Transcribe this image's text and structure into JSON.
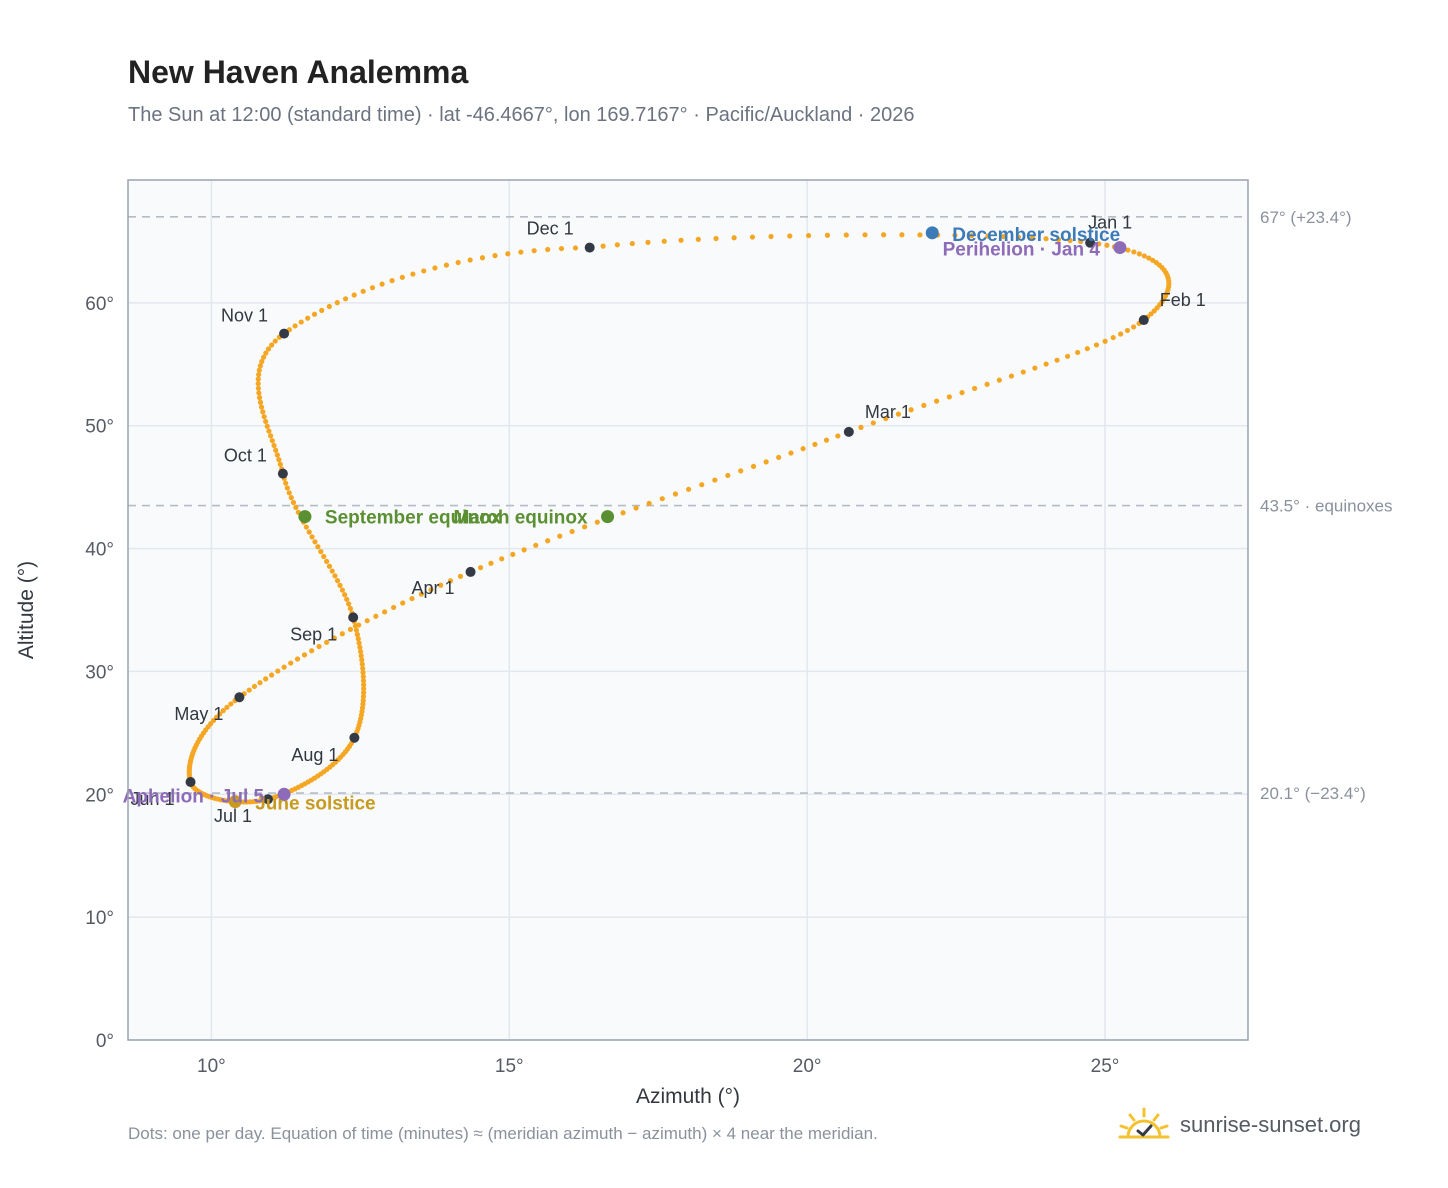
{
  "header": {
    "title": "New Haven Analemma",
    "subtitle": "The Sun at 12:00 (standard time) · lat -46.4667°, lon 169.7167° · Pacific/Auckland · 2026"
  },
  "footer": {
    "note": "Dots: one per day. Equation of time (minutes) ≈ (meridian azimuth − azimuth) × 4 near the meridian.",
    "brand": "sunrise-sunset.org",
    "brand_icon": "sun-horizon-icon"
  },
  "colors": {
    "curve": "#f5a623",
    "month_marker": "#333a45",
    "december_solstice": "#3d7ab8",
    "june_solstice": "#c89a1e",
    "equinox": "#5a8f32",
    "perihelion_aphelion": "#8e6bb8",
    "plot_bg": "#f8fafc",
    "grid": "#e3e8ee",
    "frame": "#9aa3ae",
    "ref_line": "#b4bcc6"
  },
  "chart_data": {
    "type": "scatter",
    "title": "New Haven Analemma",
    "xlabel": "Azimuth (°)",
    "ylabel": "Altitude (°)",
    "xlim": [
      8.6,
      27.4
    ],
    "ylim": [
      0,
      70
    ],
    "x_ticks": [
      10,
      15,
      20,
      25
    ],
    "x_tick_labels": [
      "10°",
      "15°",
      "20°",
      "25°"
    ],
    "y_ticks": [
      0,
      10,
      20,
      30,
      40,
      50,
      60
    ],
    "y_tick_labels": [
      "0°",
      "10°",
      "20°",
      "30°",
      "40°",
      "50°",
      "60°"
    ],
    "grid": true,
    "reference_lines": [
      {
        "y": 67.0,
        "label": "67° (+23.4°)"
      },
      {
        "y": 43.5,
        "label": "43.5° · equinoxes"
      },
      {
        "y": 20.1,
        "label": "20.1° (−23.4°)"
      }
    ],
    "analemma_path": [
      {
        "day": 0,
        "az": 24.75,
        "alt": 64.9
      },
      {
        "day": 31,
        "az": 25.65,
        "alt": 58.6
      },
      {
        "day": 59,
        "az": 20.7,
        "alt": 49.5
      },
      {
        "day": 90,
        "az": 14.35,
        "alt": 38.1
      },
      {
        "day": 120,
        "az": 10.47,
        "alt": 27.9
      },
      {
        "day": 151,
        "az": 9.65,
        "alt": 21.0
      },
      {
        "day": 181,
        "az": 10.95,
        "alt": 19.6
      },
      {
        "day": 212,
        "az": 12.4,
        "alt": 24.6
      },
      {
        "day": 243,
        "az": 12.38,
        "alt": 34.4
      },
      {
        "day": 273,
        "az": 11.2,
        "alt": 46.1
      },
      {
        "day": 304,
        "az": 11.22,
        "alt": 57.5
      },
      {
        "day": 334,
        "az": 16.35,
        "alt": 64.5
      },
      {
        "day": 365,
        "az": 24.75,
        "alt": 64.9
      }
    ],
    "month_markers": [
      {
        "label": "Jan 1",
        "az": 24.75,
        "alt": 64.9
      },
      {
        "label": "Feb 1",
        "az": 25.65,
        "alt": 58.6
      },
      {
        "label": "Mar 1",
        "az": 20.7,
        "alt": 49.5
      },
      {
        "label": "Apr 1",
        "az": 14.35,
        "alt": 38.1
      },
      {
        "label": "May 1",
        "az": 10.47,
        "alt": 27.9
      },
      {
        "label": "Jun 1",
        "az": 9.65,
        "alt": 21.0
      },
      {
        "label": "Jul 1",
        "az": 10.95,
        "alt": 19.6
      },
      {
        "label": "Aug 1",
        "az": 12.4,
        "alt": 24.6
      },
      {
        "label": "Sep 1",
        "az": 12.38,
        "alt": 34.4
      },
      {
        "label": "Oct 1",
        "az": 11.2,
        "alt": 46.1
      },
      {
        "label": "Nov 1",
        "az": 11.22,
        "alt": 57.5
      },
      {
        "label": "Dec 1",
        "az": 16.35,
        "alt": 64.5
      }
    ],
    "events": [
      {
        "label": "December solstice",
        "az": 22.1,
        "alt": 65.7,
        "color_key": "december_solstice"
      },
      {
        "label": "Perihelion · Jan 4",
        "az": 25.25,
        "alt": 64.5,
        "color_key": "perihelion_aphelion"
      },
      {
        "label": "March equinox",
        "az": 16.65,
        "alt": 42.6,
        "color_key": "equinox"
      },
      {
        "label": "September equinox",
        "az": 11.57,
        "alt": 42.6,
        "color_key": "equinox"
      },
      {
        "label": "June solstice",
        "az": 10.4,
        "alt": 19.4,
        "color_key": "june_solstice"
      },
      {
        "label": "Aphelion · Jul 5",
        "az": 11.22,
        "alt": 20.0,
        "color_key": "perihelion_aphelion"
      }
    ]
  }
}
